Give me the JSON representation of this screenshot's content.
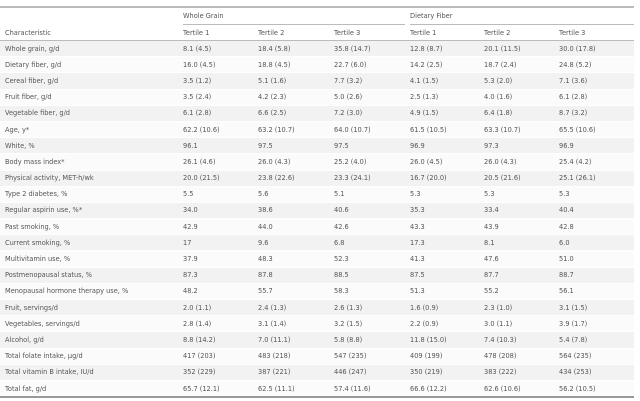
{
  "table": {
    "group_headers": [
      "Whole Grain",
      "Dietary Fiber"
    ],
    "columns": [
      "Characteristic",
      "Tertile 1",
      "Tertile 2",
      "Tertile 3",
      "Tertile 1",
      "Tertile 2",
      "Tertile 3"
    ],
    "rows": [
      [
        "Whole grain, g/d",
        "8.1 (4.5)",
        "18.4 (5.8)",
        "35.8 (14.7)",
        "12.8 (8.7)",
        "20.1 (11.5)",
        "30.0 (17.8)"
      ],
      [
        "Dietary fiber, g/d",
        "16.0 (4.5)",
        "18.8 (4.5)",
        "22.7 (6.0)",
        "14.2 (2.5)",
        "18.7 (2.4)",
        "24.8 (5.2)"
      ],
      [
        "Cereal fiber, g/d",
        "3.5 (1.2)",
        "5.1 (1.6)",
        "7.7 (3.2)",
        "4.1 (1.5)",
        "5.3 (2.0)",
        "7.1 (3.6)"
      ],
      [
        "Fruit fiber, g/d",
        "3.5 (2.4)",
        "4.2 (2.3)",
        "5.0 (2.6)",
        "2.5 (1.3)",
        "4.0 (1.6)",
        "6.1 (2.8)"
      ],
      [
        "Vegetable fiber, g/d",
        "6.1 (2.8)",
        "6.6 (2.5)",
        "7.2 (3.0)",
        "4.9 (1.5)",
        "6.4 (1.8)",
        "8.7 (3.2)"
      ],
      [
        "Age, y*",
        "62.2 (10.6)",
        "63.2 (10.7)",
        "64.0 (10.7)",
        "61.5 (10.5)",
        "63.3 (10.7)",
        "65.5 (10.6)"
      ],
      [
        "White, %",
        "96.1",
        "97.5",
        "97.5",
        "96.9",
        "97.3",
        "96.9"
      ],
      [
        "Body mass index*",
        "26.1 (4.6)",
        "26.0 (4.3)",
        "25.2 (4.0)",
        "26.0 (4.5)",
        "26.0 (4.3)",
        "25.4 (4.2)"
      ],
      [
        "Physical activity, MET-h/wk",
        "20.0 (21.5)",
        "23.8 (22.6)",
        "23.3 (24.1)",
        "16.7 (20.0)",
        "20.5 (21.6)",
        "25.1 (26.1)"
      ],
      [
        "Type 2 diabetes, %",
        "5.5",
        "5.6",
        "5.1",
        "5.3",
        "5.3",
        "5.3"
      ],
      [
        "Regular aspirin use, %*",
        "34.0",
        "38.6",
        "40.6",
        "35.3",
        "33.4",
        "40.4"
      ],
      [
        "Past smoking, %",
        "42.9",
        "44.0",
        "42.6",
        "43.3",
        "43.9",
        "42.8"
      ],
      [
        "Current smoking, %",
        "17",
        "9.6",
        "6.8",
        "17.3",
        "8.1",
        "6.0"
      ],
      [
        "Multivitamin use, %",
        "37.9",
        "48.3",
        "52.3",
        "41.3",
        "47.6",
        "51.0"
      ],
      [
        "Postmenopausal status, %",
        "87.3",
        "87.8",
        "88.5",
        "87.5",
        "87.7",
        "88.7"
      ],
      [
        "Menopausal hormone therapy use, %",
        "48.2",
        "55.7",
        "58.3",
        "51.3",
        "55.2",
        "56.1"
      ],
      [
        "Fruit, servings/d",
        "2.0 (1.1)",
        "2.4 (1.3)",
        "2.6 (1.3)",
        "1.6 (0.9)",
        "2.3 (1.0)",
        "3.1 (1.5)"
      ],
      [
        "Vegetables, servings/d",
        "2.8 (1.4)",
        "3.1 (1.4)",
        "3.2 (1.5)",
        "2.2 (0.9)",
        "3.0 (1.1)",
        "3.9 (1.7)"
      ],
      [
        "Alcohol, g/d",
        "8.8 (14.2)",
        "7.0 (11.1)",
        "5.8 (8.8)",
        "11.8 (15.0)",
        "7.4 (10.3)",
        "5.4 (7.8)"
      ],
      [
        "Total folate intake, µg/d",
        "417 (203)",
        "483 (218)",
        "547 (235)",
        "409 (199)",
        "478 (208)",
        "564 (235)"
      ],
      [
        "Total vitamin B intake, IU/d",
        "352 (229)",
        "387 (221)",
        "446 (247)",
        "350 (219)",
        "383 (222)",
        "434 (253)"
      ],
      [
        "Total fat, g/d",
        "65.7 (12.1)",
        "62.5 (11.1)",
        "57.4 (11.6)",
        "66.6 (12.2)",
        "62.6 (10.6)",
        "56.2 (10.5)"
      ]
    ]
  }
}
